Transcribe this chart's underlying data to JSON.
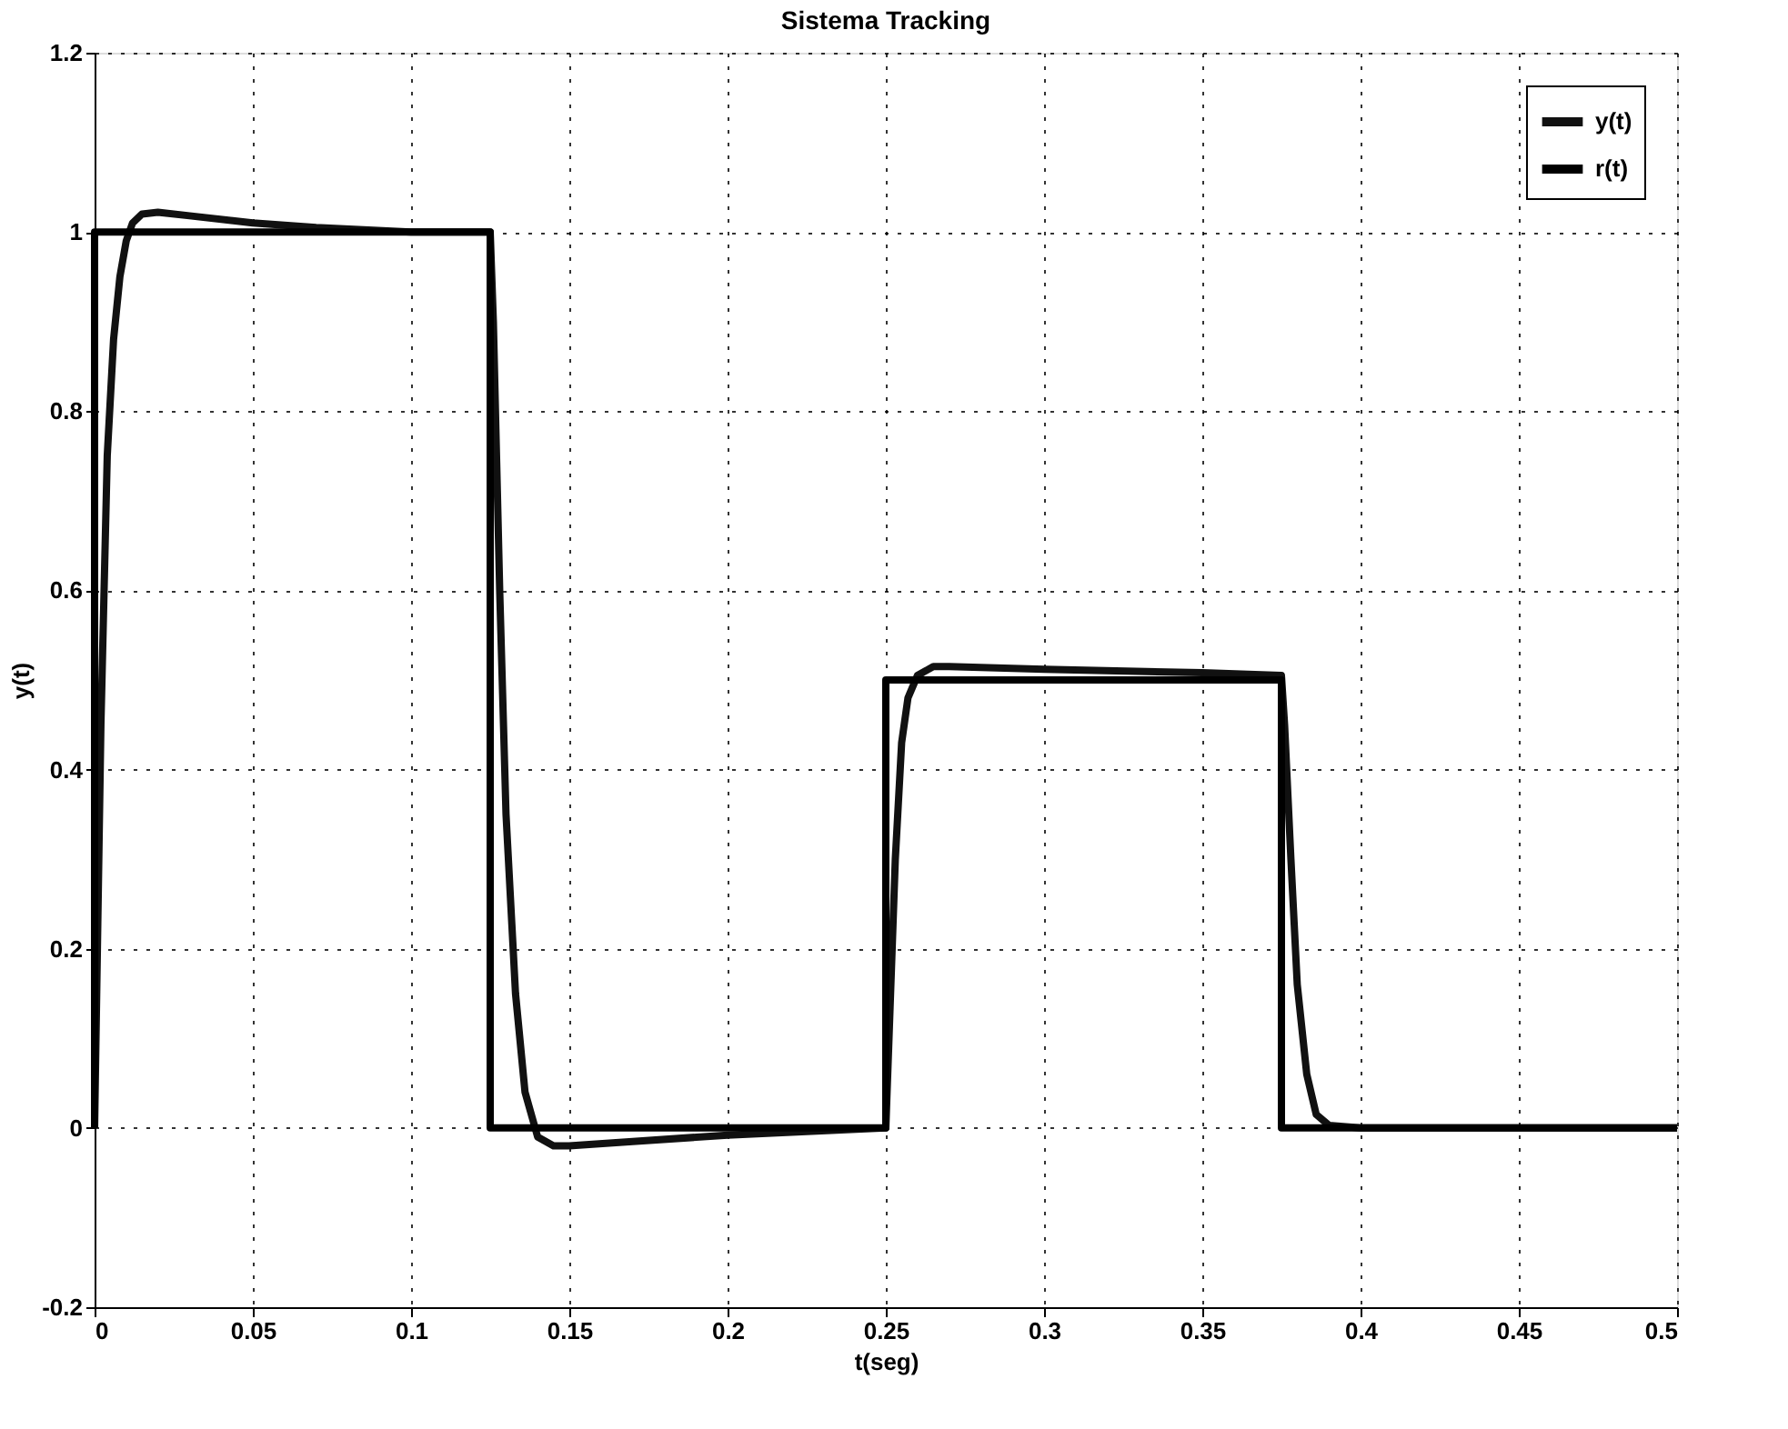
{
  "chart_data": {
    "type": "line",
    "title": "Sistema Tracking",
    "xlabel": "t(seg)",
    "ylabel": "y(t)",
    "xlim": [
      0,
      0.5
    ],
    "ylim": [
      -0.2,
      1.2
    ],
    "xticks": [
      0,
      0.05,
      0.1,
      0.15,
      0.2,
      0.25,
      0.3,
      0.35,
      0.4,
      0.45,
      0.5
    ],
    "yticks": [
      -0.2,
      0,
      0.2,
      0.4,
      0.6,
      0.8,
      1,
      1.2
    ],
    "grid": true,
    "legend": "top right",
    "line_style": "solid",
    "marker": "none",
    "series": [
      {
        "name": "y(t)",
        "color": "#111111",
        "x": [
          0,
          0.002,
          0.004,
          0.006,
          0.008,
          0.01,
          0.012,
          0.015,
          0.02,
          0.03,
          0.05,
          0.07,
          0.1,
          0.125,
          0.126,
          0.128,
          0.13,
          0.133,
          0.136,
          0.14,
          0.145,
          0.15,
          0.17,
          0.2,
          0.25,
          0.251,
          0.253,
          0.255,
          0.257,
          0.26,
          0.265,
          0.27,
          0.3,
          0.35,
          0.375,
          0.376,
          0.378,
          0.38,
          0.383,
          0.386,
          0.39,
          0.4,
          0.45,
          0.5
        ],
        "values": [
          0,
          0.45,
          0.75,
          0.88,
          0.95,
          0.99,
          1.01,
          1.02,
          1.022,
          1.018,
          1.01,
          1.005,
          1.0,
          1.0,
          0.9,
          0.6,
          0.35,
          0.15,
          0.04,
          -0.01,
          -0.02,
          -0.02,
          -0.015,
          -0.008,
          0,
          0.1,
          0.3,
          0.43,
          0.48,
          0.505,
          0.515,
          0.515,
          0.512,
          0.508,
          0.505,
          0.45,
          0.3,
          0.16,
          0.06,
          0.015,
          0.003,
          0,
          0,
          0
        ]
      },
      {
        "name": "r(t)",
        "color": "#000000",
        "x": [
          0,
          0,
          0.125,
          0.125,
          0.25,
          0.25,
          0.375,
          0.375,
          0.5
        ],
        "values": [
          0,
          1,
          1,
          0,
          0,
          0.5,
          0.5,
          0,
          0
        ]
      }
    ]
  }
}
